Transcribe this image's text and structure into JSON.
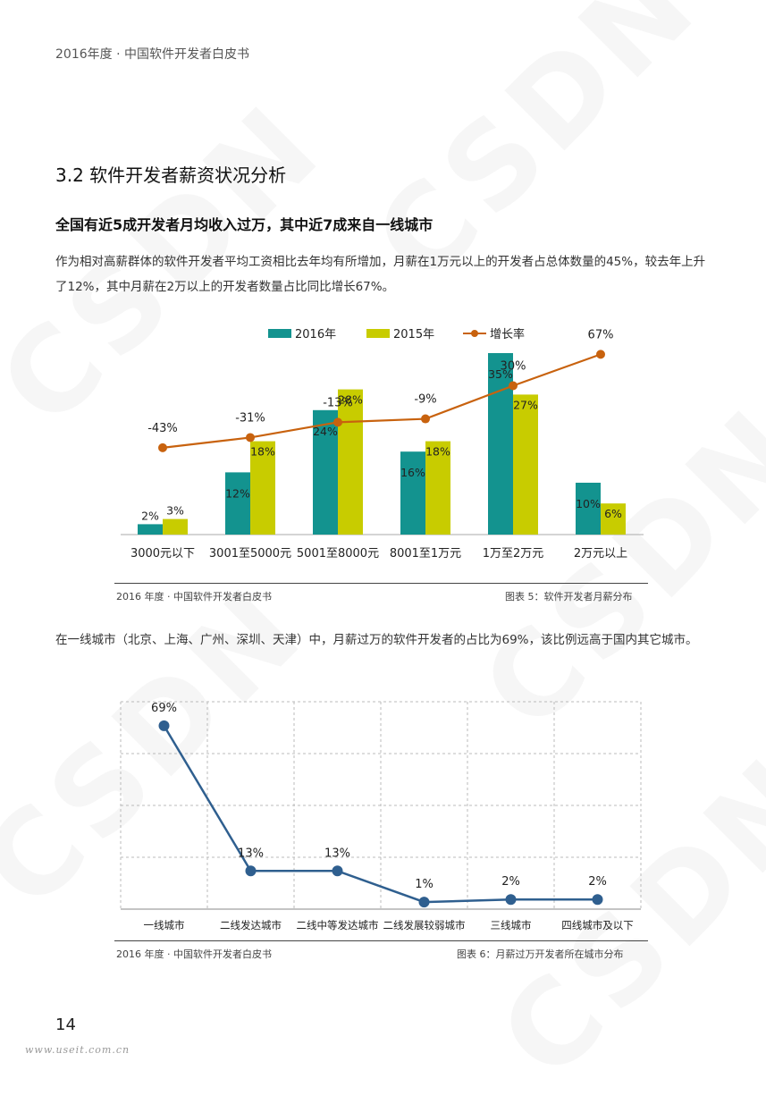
{
  "header": {
    "text": "2016年度 · 中国软件开发者白皮书"
  },
  "watermark": "CSDN",
  "section": {
    "title": "3.2 软件开发者薪资状况分析"
  },
  "subhead": "全国有近5成开发者月均收入过万，其中近7成来自一线城市",
  "paragraph1": "作为相对高薪群体的软件开发者平均工资相比去年均有所增加，月薪在1万元以上的开发者占总体数量的45%，较去年上升了12%，其中月薪在2万以上的开发者数量占比同比增长67%。",
  "paragraph2": "在一线城市（北京、上海、广州、深圳、天津）中，月薪过万的软件开发者的占比为69%，该比例远高于国内其它城市。",
  "caption1": {
    "left": "2016 年度 · 中国软件开发者白皮书",
    "right": "图表 5：软件开发者月薪分布"
  },
  "caption2": {
    "left": "2016 年度 · 中国软件开发者白皮书",
    "right": "图表 6：月薪过万开发者所在城市分布"
  },
  "page_number": "14",
  "footer_url": "www.useit.com.cn",
  "colors": {
    "s2016": "#13938f",
    "s2015": "#c8cc00",
    "growth": "#c8620e",
    "line2": "#2f5f8f"
  },
  "chart_data": [
    {
      "type": "bar",
      "categories": [
        "3000元以下",
        "3001至5000元",
        "5001至8000元",
        "8001至1万元",
        "1万至2万元",
        "2万元以上"
      ],
      "series": [
        {
          "name": "2016年",
          "values": [
            2,
            12,
            24,
            16,
            35,
            10
          ],
          "labels": [
            "2%",
            "12%",
            "24%",
            "16%",
            "35%",
            "10%"
          ]
        },
        {
          "name": "2015年",
          "values": [
            3,
            18,
            28,
            18,
            27,
            6
          ],
          "labels": [
            "3%",
            "18%",
            "28%",
            "18%",
            "27%",
            "6%"
          ]
        },
        {
          "name": "增长率",
          "type": "line",
          "values": [
            -43,
            -31,
            -13,
            -9,
            30,
            67
          ],
          "labels": [
            "-43%",
            "-31%",
            "-13%",
            "-9%",
            "30%",
            "67%"
          ],
          "categories_idx": [
            0,
            1,
            2,
            3,
            4,
            5
          ]
        }
      ],
      "legend_position": "top",
      "grid": false
    },
    {
      "type": "line",
      "categories": [
        "一线城市",
        "二线发达城市",
        "二线中等发达城市",
        "二线发展较弱城市",
        "三线城市",
        "四线城市及以下"
      ],
      "values": [
        69,
        13,
        13,
        1,
        2,
        2
      ],
      "labels": [
        "69%",
        "13%",
        "13%",
        "1%",
        "2%",
        "2%"
      ],
      "grid": true
    }
  ]
}
